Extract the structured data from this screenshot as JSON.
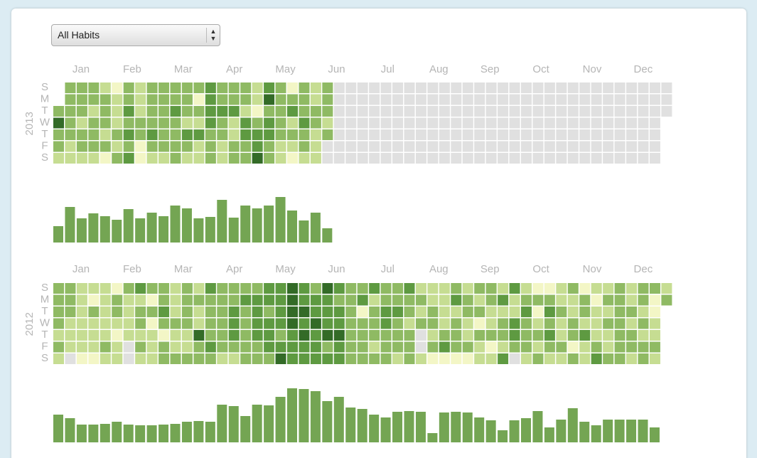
{
  "select": {
    "label": "All Habits"
  },
  "month_labels": [
    "Jan",
    "Feb",
    "Mar",
    "Apr",
    "May",
    "Jun",
    "Jul",
    "Aug",
    "Sep",
    "Oct",
    "Nov",
    "Dec"
  ],
  "day_labels": [
    "S",
    "M",
    "T",
    "W",
    "T",
    "F",
    "S"
  ],
  "level_colors": [
    "#e0e0e0",
    "#f3f6c6",
    "#c6dd92",
    "#8fba63",
    "#5e9a41",
    "#336b27"
  ],
  "bar_color": "#74a553",
  "years": [
    {
      "label": "2013",
      "weeks": [
        [
          null,
          null,
          3,
          5,
          3,
          3,
          2
        ],
        [
          3,
          3,
          3,
          3,
          3,
          2,
          2
        ],
        [
          3,
          3,
          3,
          2,
          3,
          3,
          2
        ],
        [
          3,
          3,
          2,
          3,
          3,
          3,
          2
        ],
        [
          2,
          3,
          3,
          3,
          2,
          3,
          1
        ],
        [
          1,
          2,
          2,
          2,
          3,
          2,
          3
        ],
        [
          3,
          3,
          4,
          3,
          4,
          3,
          4
        ],
        [
          2,
          2,
          2,
          3,
          3,
          1,
          1
        ],
        [
          3,
          3,
          3,
          3,
          4,
          3,
          2
        ],
        [
          3,
          3,
          3,
          3,
          3,
          3,
          2
        ],
        [
          3,
          3,
          4,
          3,
          3,
          3,
          3
        ],
        [
          3,
          3,
          3,
          2,
          4,
          3,
          2
        ],
        [
          3,
          1,
          3,
          2,
          4,
          2,
          2
        ],
        [
          4,
          4,
          4,
          4,
          3,
          3,
          3
        ],
        [
          3,
          3,
          4,
          3,
          3,
          2,
          2
        ],
        [
          3,
          3,
          4,
          2,
          2,
          3,
          3
        ],
        [
          3,
          3,
          2,
          4,
          4,
          3,
          3
        ],
        [
          2,
          2,
          1,
          3,
          4,
          4,
          5
        ],
        [
          4,
          5,
          3,
          4,
          4,
          3,
          3
        ],
        [
          3,
          3,
          3,
          3,
          3,
          2,
          2
        ],
        [
          1,
          3,
          4,
          2,
          3,
          2,
          1
        ],
        [
          3,
          3,
          3,
          4,
          3,
          3,
          2
        ],
        [
          2,
          2,
          3,
          3,
          2,
          2,
          2
        ],
        [
          3,
          3,
          3,
          2,
          3,
          0,
          0
        ],
        [
          0,
          0,
          0,
          0,
          0,
          0,
          0
        ],
        [
          0,
          0,
          0,
          0,
          0,
          0,
          0
        ],
        [
          0,
          0,
          0,
          0,
          0,
          0,
          0
        ],
        [
          0,
          0,
          0,
          0,
          0,
          0,
          0
        ],
        [
          0,
          0,
          0,
          0,
          0,
          0,
          0
        ],
        [
          0,
          0,
          0,
          0,
          0,
          0,
          0
        ],
        [
          0,
          0,
          0,
          0,
          0,
          0,
          0
        ],
        [
          0,
          0,
          0,
          0,
          0,
          0,
          0
        ],
        [
          0,
          0,
          0,
          0,
          0,
          0,
          0
        ],
        [
          0,
          0,
          0,
          0,
          0,
          0,
          0
        ],
        [
          0,
          0,
          0,
          0,
          0,
          0,
          0
        ],
        [
          0,
          0,
          0,
          0,
          0,
          0,
          0
        ],
        [
          0,
          0,
          0,
          0,
          0,
          0,
          0
        ],
        [
          0,
          0,
          0,
          0,
          0,
          0,
          0
        ],
        [
          0,
          0,
          0,
          0,
          0,
          0,
          0
        ],
        [
          0,
          0,
          0,
          0,
          0,
          0,
          0
        ],
        [
          0,
          0,
          0,
          0,
          0,
          0,
          0
        ],
        [
          0,
          0,
          0,
          0,
          0,
          0,
          0
        ],
        [
          0,
          0,
          0,
          0,
          0,
          0,
          0
        ],
        [
          0,
          0,
          0,
          0,
          0,
          0,
          0
        ],
        [
          0,
          0,
          0,
          0,
          0,
          0,
          0
        ],
        [
          0,
          0,
          0,
          0,
          0,
          0,
          0
        ],
        [
          0,
          0,
          0,
          0,
          0,
          0,
          0
        ],
        [
          0,
          0,
          0,
          0,
          0,
          0,
          0
        ],
        [
          0,
          0,
          0,
          0,
          0,
          0,
          0
        ],
        [
          0,
          0,
          0,
          0,
          0,
          0,
          0
        ],
        [
          0,
          0,
          0,
          0,
          0,
          0,
          0
        ],
        [
          0,
          0,
          0,
          0,
          0,
          0,
          0
        ],
        [
          0,
          0,
          0,
          null,
          null,
          null,
          null
        ]
      ],
      "bars": [
        23,
        50,
        34,
        41,
        37,
        32,
        47,
        34,
        42,
        37,
        52,
        48,
        34,
        36,
        60,
        35,
        52,
        48,
        52,
        64,
        45,
        31,
        42,
        20
      ]
    },
    {
      "label": "2012",
      "weeks": [
        [
          3,
          3,
          3,
          3,
          2,
          3,
          2
        ],
        [
          3,
          3,
          3,
          2,
          2,
          2,
          0
        ],
        [
          2,
          2,
          2,
          2,
          2,
          2,
          1
        ],
        [
          2,
          1,
          3,
          2,
          2,
          2,
          1
        ],
        [
          2,
          2,
          2,
          2,
          2,
          3,
          2
        ],
        [
          1,
          3,
          3,
          2,
          1,
          2,
          2
        ],
        [
          3,
          2,
          2,
          2,
          2,
          0,
          0
        ],
        [
          4,
          2,
          3,
          3,
          2,
          3,
          2
        ],
        [
          3,
          1,
          3,
          1,
          2,
          2,
          2
        ],
        [
          3,
          3,
          4,
          3,
          1,
          3,
          3
        ],
        [
          2,
          2,
          2,
          3,
          2,
          2,
          3
        ],
        [
          3,
          3,
          3,
          3,
          2,
          2,
          3
        ],
        [
          2,
          3,
          2,
          2,
          5,
          3,
          3
        ],
        [
          4,
          3,
          3,
          3,
          3,
          4,
          3
        ],
        [
          3,
          3,
          3,
          3,
          3,
          3,
          2
        ],
        [
          3,
          3,
          4,
          4,
          4,
          3,
          2
        ],
        [
          3,
          4,
          3,
          3,
          3,
          3,
          3
        ],
        [
          3,
          4,
          4,
          4,
          4,
          3,
          3
        ],
        [
          4,
          4,
          3,
          4,
          4,
          4,
          3
        ],
        [
          4,
          4,
          4,
          4,
          3,
          4,
          5
        ],
        [
          5,
          5,
          5,
          5,
          4,
          4,
          4
        ],
        [
          4,
          4,
          5,
          4,
          5,
          4,
          4
        ],
        [
          3,
          4,
          4,
          5,
          4,
          4,
          4
        ],
        [
          5,
          4,
          4,
          4,
          5,
          3,
          4
        ],
        [
          4,
          3,
          4,
          4,
          5,
          4,
          4
        ],
        [
          3,
          3,
          3,
          3,
          3,
          3,
          3
        ],
        [
          3,
          4,
          1,
          3,
          3,
          3,
          3
        ],
        [
          4,
          2,
          3,
          3,
          3,
          2,
          3
        ],
        [
          3,
          3,
          4,
          4,
          3,
          3,
          3
        ],
        [
          3,
          3,
          4,
          3,
          3,
          3,
          2
        ],
        [
          4,
          3,
          3,
          2,
          3,
          3,
          3
        ],
        [
          2,
          3,
          2,
          3,
          0,
          0,
          2
        ],
        [
          2,
          2,
          3,
          3,
          2,
          3,
          1
        ],
        [
          2,
          2,
          2,
          2,
          3,
          4,
          1
        ],
        [
          3,
          4,
          2,
          3,
          3,
          3,
          1
        ],
        [
          2,
          3,
          3,
          2,
          2,
          3,
          1
        ],
        [
          3,
          2,
          3,
          1,
          3,
          2,
          2
        ],
        [
          3,
          3,
          2,
          2,
          3,
          1,
          2
        ],
        [
          2,
          4,
          2,
          3,
          3,
          2,
          4
        ],
        [
          4,
          2,
          2,
          4,
          4,
          3,
          0
        ],
        [
          2,
          3,
          4,
          3,
          3,
          3,
          2
        ],
        [
          1,
          3,
          1,
          2,
          3,
          2,
          3
        ],
        [
          1,
          3,
          4,
          3,
          4,
          3,
          2
        ],
        [
          2,
          2,
          3,
          2,
          2,
          3,
          2
        ],
        [
          3,
          2,
          2,
          3,
          3,
          1,
          3
        ],
        [
          1,
          3,
          3,
          2,
          4,
          2,
          2
        ],
        [
          2,
          1,
          2,
          2,
          2,
          3,
          4
        ],
        [
          2,
          3,
          2,
          3,
          2,
          2,
          3
        ],
        [
          3,
          3,
          3,
          3,
          3,
          3,
          3
        ],
        [
          2,
          2,
          3,
          2,
          3,
          3,
          2
        ],
        [
          3,
          3,
          2,
          3,
          2,
          3,
          3
        ],
        [
          3,
          1,
          1,
          2,
          2,
          3,
          2
        ],
        [
          2,
          3,
          null,
          null,
          null,
          null,
          null
        ]
      ],
      "bars": [
        39,
        34,
        25,
        25,
        26,
        29,
        25,
        24,
        24,
        25,
        26,
        29,
        30,
        29,
        53,
        51,
        37,
        53,
        52,
        64,
        76,
        75,
        72,
        58,
        64,
        49,
        47,
        39,
        35,
        43,
        44,
        43,
        13,
        42,
        43,
        42,
        35,
        31,
        17,
        31,
        34,
        44,
        21,
        32,
        48,
        29,
        24,
        32,
        32,
        32,
        32,
        21
      ]
    }
  ]
}
